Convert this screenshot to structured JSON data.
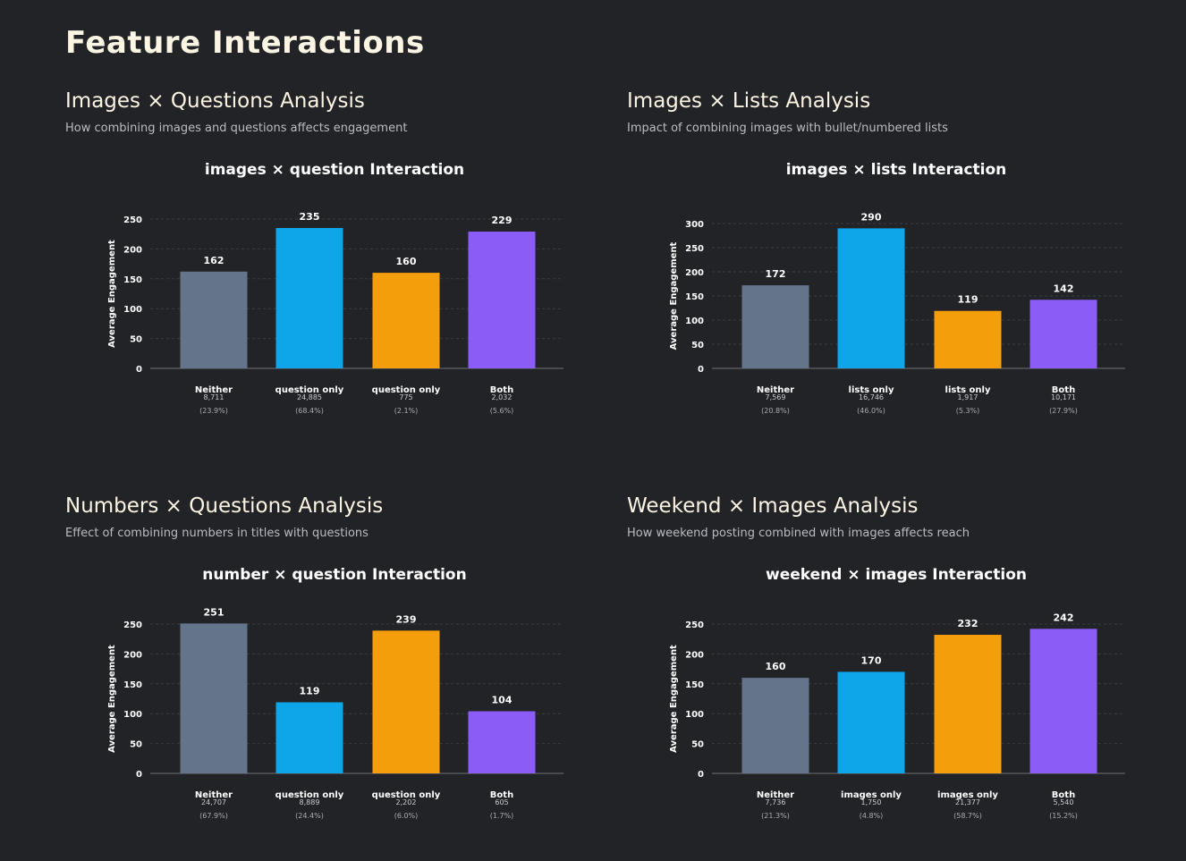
{
  "page": {
    "title": "Feature Interactions"
  },
  "panels": [
    {
      "title": "Images × Questions Analysis",
      "subtitle": "How combining images and questions affects engagement",
      "chart_title": "images × question Interaction"
    },
    {
      "title": "Images × Lists Analysis",
      "subtitle": "Impact of combining images with bullet/numbered lists",
      "chart_title": "images × lists Interaction"
    },
    {
      "title": "Numbers × Questions Analysis",
      "subtitle": "Effect of combining numbers in titles with questions",
      "chart_title": "number × question Interaction"
    },
    {
      "title": "Weekend × Images Analysis",
      "subtitle": "How weekend posting combined with images affects reach",
      "chart_title": "weekend × images Interaction"
    }
  ],
  "chart_data": [
    {
      "type": "bar",
      "title": "images × question Interaction",
      "ylabel": "Average Engagement",
      "xlabel": "",
      "ylim": [
        0,
        250
      ],
      "yticks": [
        0,
        50,
        100,
        150,
        200,
        250
      ],
      "categories": [
        "Neither",
        "question only",
        "question only",
        "Both"
      ],
      "values": [
        162,
        235,
        160,
        229
      ],
      "counts": [
        "8,711",
        "24,885",
        "775",
        "2,032"
      ],
      "percents": [
        "(23.9%)",
        "(68.4%)",
        "(2.1%)",
        "(5.6%)"
      ],
      "colors": [
        "#64748b",
        "#0ea5e9",
        "#f59e0b",
        "#8b5cf6"
      ]
    },
    {
      "type": "bar",
      "title": "images × lists Interaction",
      "ylabel": "Average Engagement",
      "xlabel": "",
      "ylim": [
        0,
        300
      ],
      "yticks": [
        0,
        50,
        100,
        150,
        200,
        250,
        300
      ],
      "categories": [
        "Neither",
        "lists only",
        "lists only",
        "Both"
      ],
      "values": [
        172,
        290,
        119,
        142
      ],
      "counts": [
        "7,569",
        "16,746",
        "1,917",
        "10,171"
      ],
      "percents": [
        "(20.8%)",
        "(46.0%)",
        "(5.3%)",
        "(27.9%)"
      ],
      "colors": [
        "#64748b",
        "#0ea5e9",
        "#f59e0b",
        "#8b5cf6"
      ]
    },
    {
      "type": "bar",
      "title": "number × question Interaction",
      "ylabel": "Average Engagement",
      "xlabel": "",
      "ylim": [
        0,
        250
      ],
      "yticks": [
        0,
        50,
        100,
        150,
        200,
        250
      ],
      "categories": [
        "Neither",
        "question only",
        "question only",
        "Both"
      ],
      "values": [
        251,
        119,
        239,
        104
      ],
      "counts": [
        "24,707",
        "8,889",
        "2,202",
        "605"
      ],
      "percents": [
        "(67.9%)",
        "(24.4%)",
        "(6.0%)",
        "(1.7%)"
      ],
      "colors": [
        "#64748b",
        "#0ea5e9",
        "#f59e0b",
        "#8b5cf6"
      ]
    },
    {
      "type": "bar",
      "title": "weekend × images Interaction",
      "ylabel": "Average Engagement",
      "xlabel": "",
      "ylim": [
        0,
        250
      ],
      "yticks": [
        0,
        50,
        100,
        150,
        200,
        250
      ],
      "categories": [
        "Neither",
        "images only",
        "images only",
        "Both"
      ],
      "values": [
        160,
        170,
        232,
        242
      ],
      "counts": [
        "7,736",
        "1,750",
        "21,377",
        "5,540"
      ],
      "percents": [
        "(21.3%)",
        "(4.8%)",
        "(58.7%)",
        "(15.2%)"
      ],
      "colors": [
        "#64748b",
        "#0ea5e9",
        "#f59e0b",
        "#8b5cf6"
      ]
    }
  ]
}
